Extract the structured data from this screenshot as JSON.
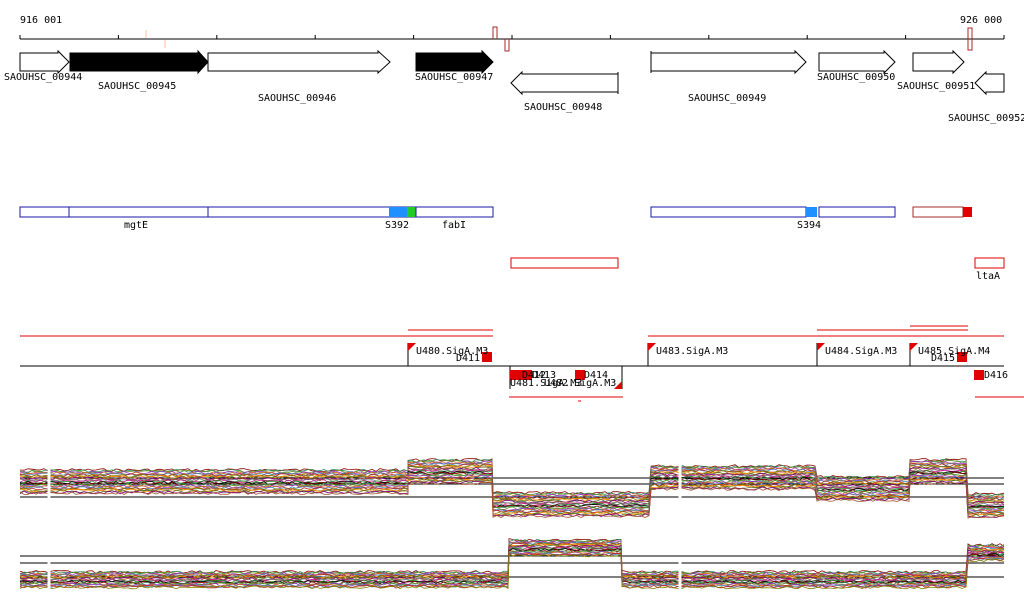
{
  "ruler": {
    "start_label": "916 001",
    "end_label": "926 000"
  },
  "genes": [
    {
      "label": "SAOUHSC_00944"
    },
    {
      "label": "SAOUHSC_00945"
    },
    {
      "label": "SAOUHSC_00946"
    },
    {
      "label": "SAOUHSC_00947"
    },
    {
      "label": "SAOUHSC_00948"
    },
    {
      "label": "SAOUHSC_00949"
    },
    {
      "label": "SAOUHSC_00950"
    },
    {
      "label": "SAOUHSC_00951"
    },
    {
      "label": "SAOUHSC_00952"
    }
  ],
  "features": [
    {
      "label": "mgtE"
    },
    {
      "label": "S392"
    },
    {
      "label": "fabI"
    },
    {
      "label": "S394"
    },
    {
      "label": "ltaA"
    }
  ],
  "regulatory": {
    "upstream": [
      {
        "label": "U480.SigA.M3"
      },
      {
        "label": "U483.SigA.M3"
      },
      {
        "label": "U484.SigA.M3"
      },
      {
        "label": "U485.SigA.M4"
      },
      {
        "label": "U481.SigA.M3"
      },
      {
        "label": "U482.SigA.M3"
      }
    ],
    "downstream": [
      {
        "label": "D411"
      },
      {
        "label": "D412"
      },
      {
        "label": "D413"
      },
      {
        "label": "D414"
      },
      {
        "label": "D415"
      },
      {
        "label": "D416"
      }
    ]
  },
  "colors": {
    "gene_outline": "#000000",
    "gene_strong": "#000000",
    "feature_box": "#1a1aa6",
    "feature_blue": "#1e90ff",
    "feature_green": "#22cc22",
    "red": "#e00000",
    "dark_red": "#a52a2a"
  }
}
